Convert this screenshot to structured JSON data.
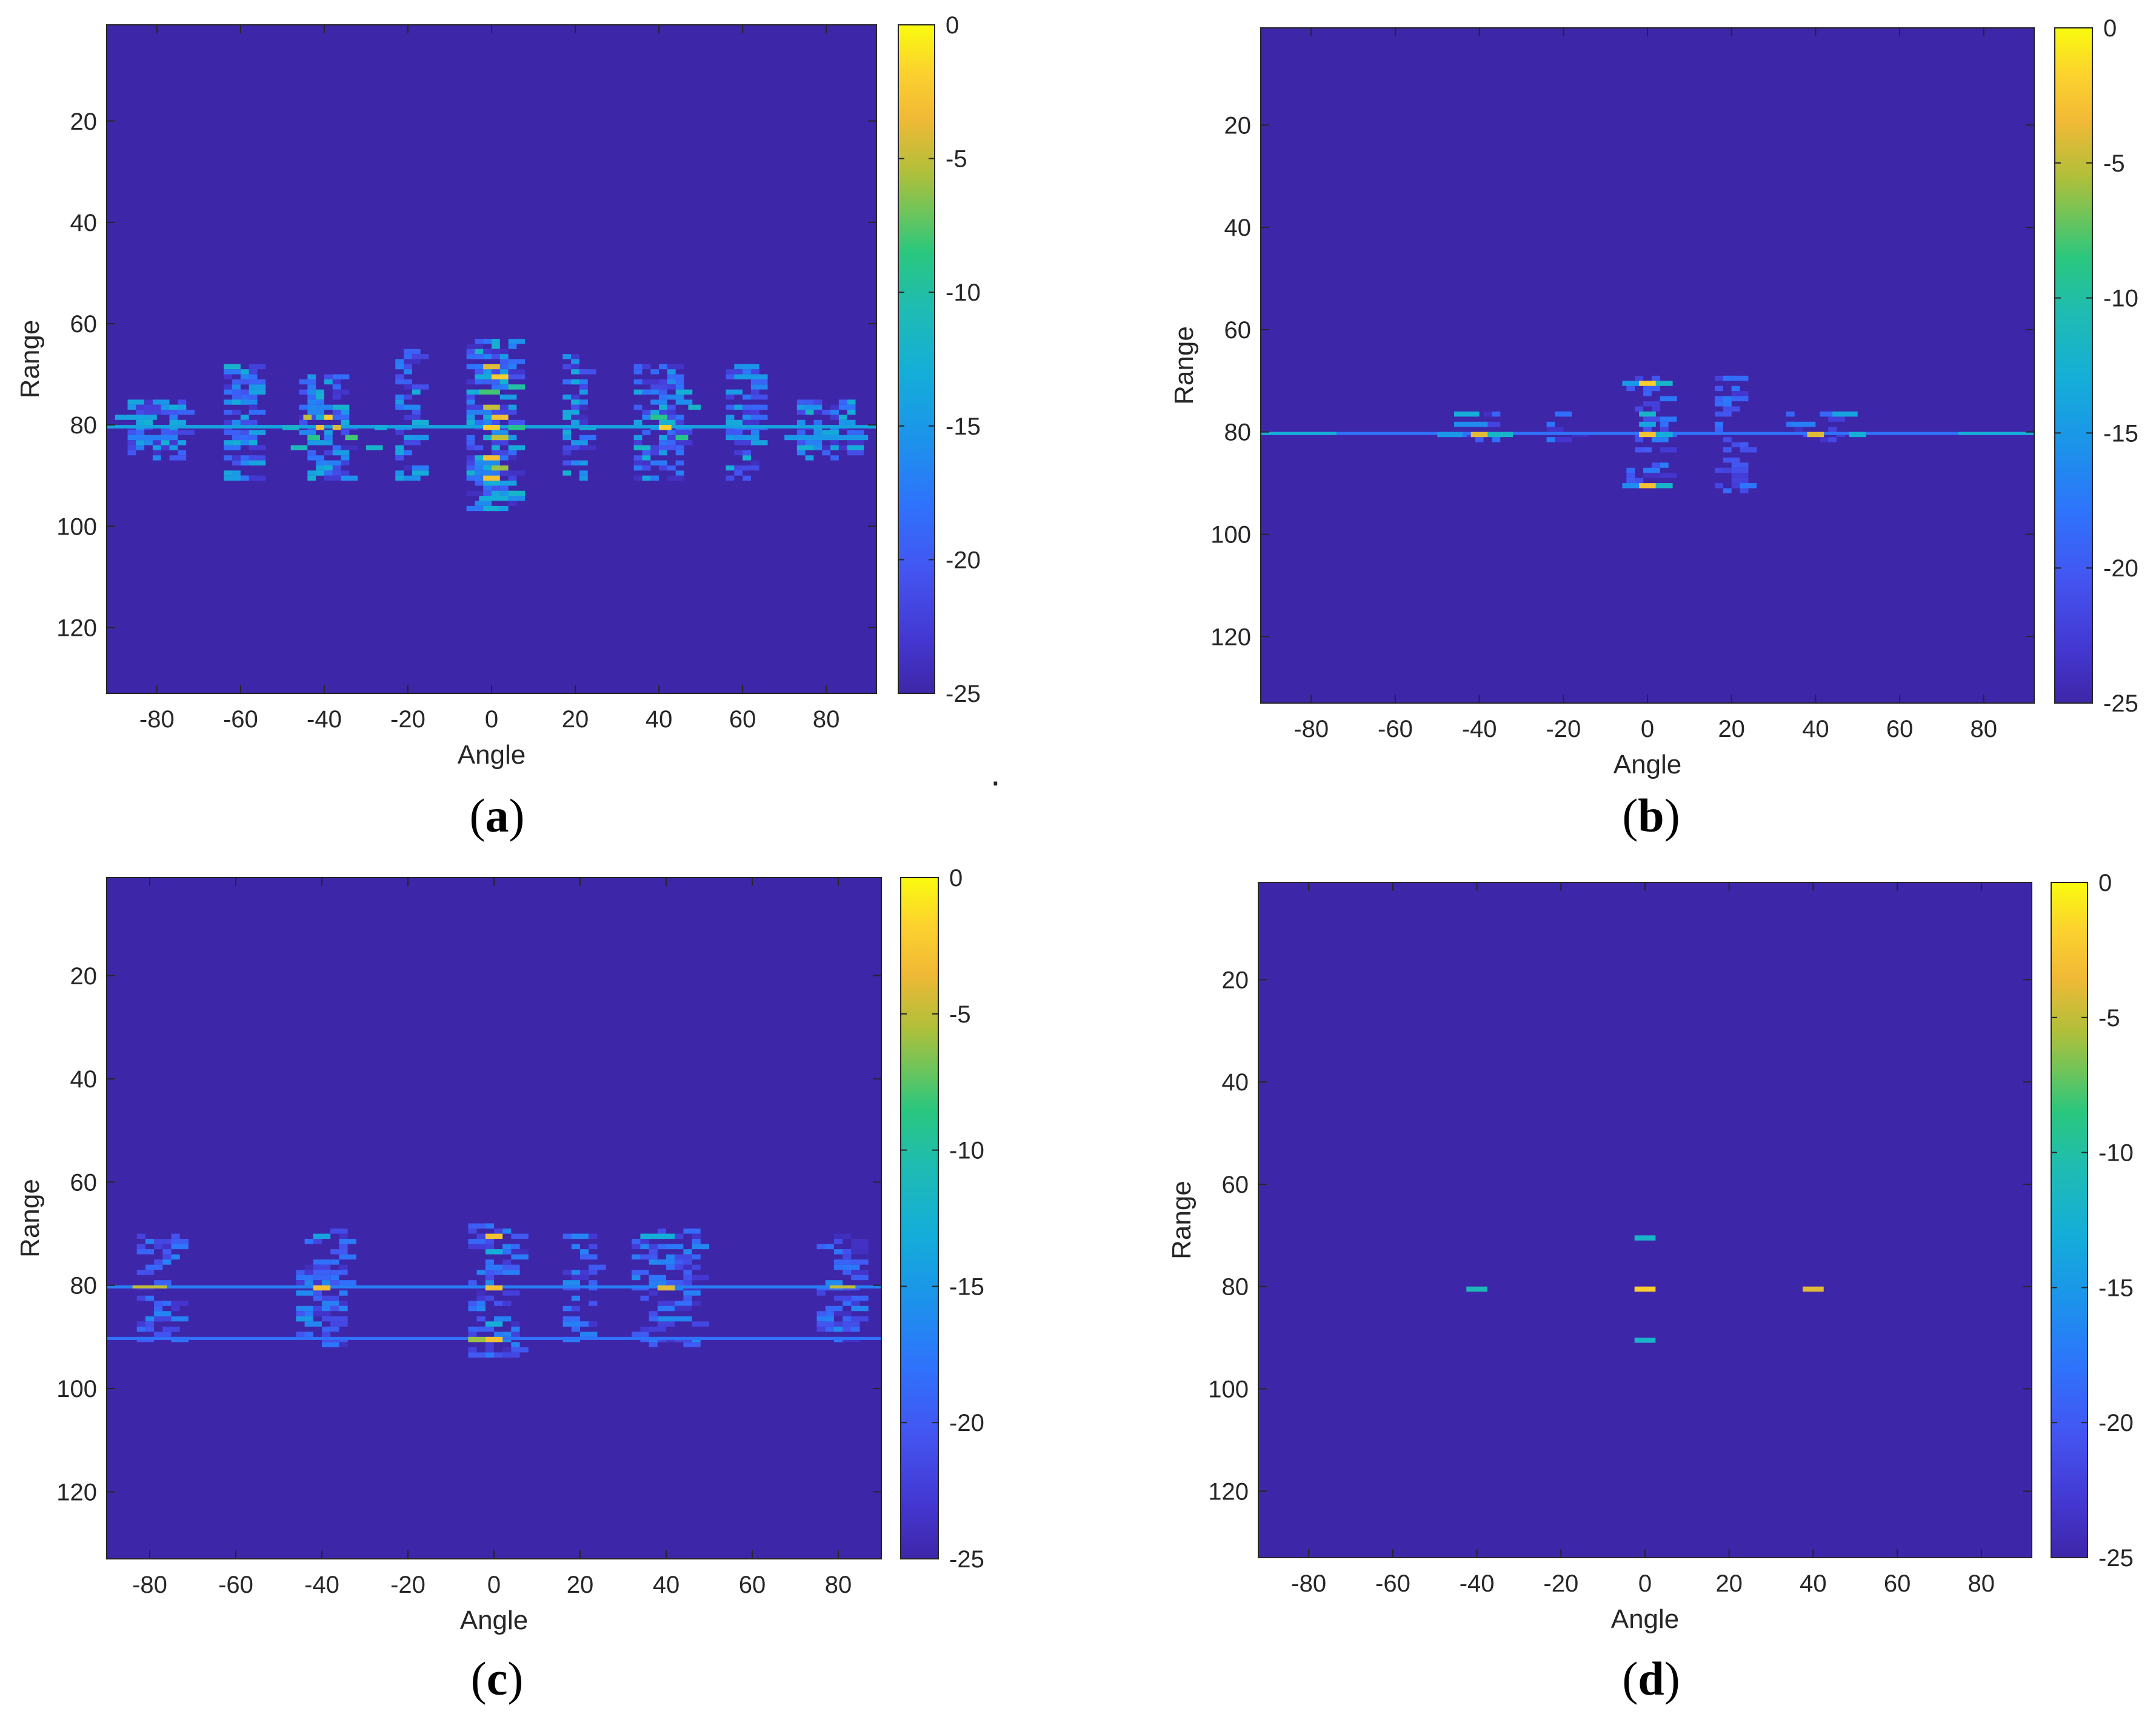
{
  "figure": {
    "stray_mark": "."
  },
  "colors": {
    "background": "#3f2aa6",
    "colormap": [
      "#3e26a8",
      "#4444e6",
      "#2b7efe",
      "#1ea4df",
      "#1fbab4",
      "#2bc68a",
      "#a6bf39",
      "#f6b93b",
      "#faea23",
      "#f9fb0e"
    ],
    "axis": "#262626"
  },
  "chart_data": [
    {
      "type": "heatmap",
      "id": "a",
      "caption_letter": "a",
      "xlabel": "Angle",
      "ylabel": "Range",
      "xlim": [
        -92,
        92
      ],
      "ylim": [
        1,
        133
      ],
      "xticks": [
        -80,
        -60,
        -40,
        -20,
        0,
        20,
        40,
        60,
        80
      ],
      "xtick_labels": [
        "-80",
        "-60",
        "-40",
        "-20",
        "0",
        "20",
        "40",
        "60",
        "80"
      ],
      "yticks": [
        20,
        40,
        60,
        80,
        100,
        120
      ],
      "ytick_labels": [
        "20",
        "40",
        "60",
        "80",
        "100",
        "120"
      ],
      "colorbar": {
        "range": [
          -25,
          0
        ],
        "ticks": [
          0,
          -5,
          -10,
          -15,
          -20,
          -25
        ],
        "tick_labels": [
          "0",
          "-5",
          "-10",
          "-15",
          "-20",
          "-25"
        ]
      },
      "background_value_db": -25,
      "cells": [
        {
          "a": -92,
          "r": 80,
          "db": -14,
          "w": 184,
          "h": 0.7
        },
        {
          "a": -45,
          "r": 78,
          "db": -5,
          "w": 2,
          "h": 1
        },
        {
          "a": -40,
          "r": 78,
          "db": -2,
          "w": 2,
          "h": 1
        },
        {
          "a": -42,
          "r": 80,
          "db": -3,
          "w": 2,
          "h": 1
        },
        {
          "a": -38,
          "r": 80,
          "db": -4,
          "w": 2,
          "h": 1
        },
        {
          "a": -44,
          "r": 82,
          "db": -9,
          "w": 3,
          "h": 1
        },
        {
          "a": -35,
          "r": 82,
          "db": -8,
          "w": 3,
          "h": 1
        },
        {
          "a": -48,
          "r": 84,
          "db": -11,
          "w": 4,
          "h": 1
        },
        {
          "a": -30,
          "r": 84,
          "db": -12,
          "w": 4,
          "h": 1
        },
        {
          "a": -50,
          "r": 80,
          "db": -12,
          "w": 4,
          "h": 1
        },
        {
          "a": -28,
          "r": 80,
          "db": -13,
          "w": 3,
          "h": 1
        },
        {
          "a": -2,
          "r": 68,
          "db": -4,
          "w": 4,
          "h": 1
        },
        {
          "a": 0,
          "r": 70,
          "db": -2,
          "w": 4,
          "h": 1
        },
        {
          "a": -3,
          "r": 73,
          "db": -8,
          "w": 5,
          "h": 1
        },
        {
          "a": -2,
          "r": 76,
          "db": -5,
          "w": 4,
          "h": 1
        },
        {
          "a": 0,
          "r": 78,
          "db": -3,
          "w": 4,
          "h": 1
        },
        {
          "a": -2,
          "r": 80,
          "db": -2,
          "w": 4,
          "h": 1
        },
        {
          "a": 0,
          "r": 82,
          "db": -5,
          "w": 4,
          "h": 1
        },
        {
          "a": -2,
          "r": 86,
          "db": -3,
          "w": 4,
          "h": 1
        },
        {
          "a": 0,
          "r": 88,
          "db": -6,
          "w": 4,
          "h": 1
        },
        {
          "a": -2,
          "r": 90,
          "db": -3,
          "w": 4,
          "h": 1
        },
        {
          "a": -3,
          "r": 94,
          "db": -13,
          "w": 6,
          "h": 1
        },
        {
          "a": 4,
          "r": 72,
          "db": -10,
          "w": 4,
          "h": 1
        },
        {
          "a": 4,
          "r": 80,
          "db": -9,
          "w": 4,
          "h": 1
        },
        {
          "a": 38,
          "r": 78,
          "db": -9,
          "w": 4,
          "h": 1
        },
        {
          "a": 40,
          "r": 80,
          "db": -2,
          "w": 3,
          "h": 1
        },
        {
          "a": 44,
          "r": 82,
          "db": -9,
          "w": 3,
          "h": 1
        },
        {
          "a": 34,
          "r": 84,
          "db": -12,
          "w": 4,
          "h": 1
        },
        {
          "a": 47,
          "r": 76,
          "db": -12,
          "w": 3,
          "h": 1
        },
        {
          "a": -90,
          "r": 78,
          "db": -14,
          "w": 10,
          "h": 1
        },
        {
          "a": 70,
          "r": 82,
          "db": -15,
          "w": 20,
          "h": 1
        },
        {
          "a": -85,
          "r": 82,
          "db": -17,
          "w": 10,
          "h": 1
        }
      ],
      "clusters": [
        {
          "center": -40,
          "span": 12,
          "rmin": 70,
          "rmax": 90
        },
        {
          "center": 0,
          "span": 12,
          "rmin": 63,
          "rmax": 96
        },
        {
          "center": 40,
          "span": 12,
          "rmin": 68,
          "rmax": 90
        },
        {
          "center": -80,
          "span": 14,
          "rmin": 75,
          "rmax": 86
        },
        {
          "center": 80,
          "span": 14,
          "rmin": 75,
          "rmax": 86
        },
        {
          "center": -20,
          "span": 6,
          "rmin": 65,
          "rmax": 90
        },
        {
          "center": 20,
          "span": 6,
          "rmin": 66,
          "rmax": 90
        },
        {
          "center": -60,
          "span": 8,
          "rmin": 68,
          "rmax": 90
        },
        {
          "center": 60,
          "span": 8,
          "rmin": 68,
          "rmax": 90
        }
      ],
      "cluster_density": 0.55,
      "cluster_db": [
        -24,
        -12
      ]
    },
    {
      "type": "heatmap",
      "id": "b",
      "caption_letter": "b",
      "xlabel": "Angle",
      "ylabel": "Range",
      "xlim": [
        -92,
        92
      ],
      "ylim": [
        1,
        133
      ],
      "xticks": [
        -80,
        -60,
        -40,
        -20,
        0,
        20,
        40,
        60,
        80
      ],
      "xtick_labels": [
        "-80",
        "-60",
        "-40",
        "-20",
        "0",
        "20",
        "40",
        "60",
        "80"
      ],
      "yticks": [
        20,
        40,
        60,
        80,
        100,
        120
      ],
      "ytick_labels": [
        "20",
        "40",
        "60",
        "80",
        "100",
        "120"
      ],
      "colorbar": {
        "range": [
          -25,
          0
        ],
        "ticks": [
          0,
          -5,
          -10,
          -15,
          -20,
          -25
        ],
        "tick_labels": [
          "0",
          "-5",
          "-10",
          "-15",
          "-20",
          "-25"
        ]
      },
      "background_value_db": -25,
      "cells": [
        {
          "a": -92,
          "r": 80,
          "db": -18,
          "w": 184,
          "h": 0.6
        },
        {
          "a": -92,
          "r": 80,
          "db": -13,
          "w": 18,
          "h": 0.6
        },
        {
          "a": 74,
          "r": 80,
          "db": -13,
          "w": 18,
          "h": 0.6
        },
        {
          "a": -2,
          "r": 70,
          "db": -2,
          "w": 4,
          "h": 1
        },
        {
          "a": 2,
          "r": 70,
          "db": -12,
          "w": 4,
          "h": 1
        },
        {
          "a": -6,
          "r": 70,
          "db": -15,
          "w": 4,
          "h": 1
        },
        {
          "a": -2,
          "r": 76,
          "db": -12,
          "w": 4,
          "h": 1
        },
        {
          "a": -2,
          "r": 78,
          "db": -14,
          "w": 4,
          "h": 1
        },
        {
          "a": -2,
          "r": 80,
          "db": -3,
          "w": 4,
          "h": 1
        },
        {
          "a": 2,
          "r": 80,
          "db": -13,
          "w": 4,
          "h": 1
        },
        {
          "a": -2,
          "r": 90,
          "db": -3,
          "w": 4,
          "h": 1
        },
        {
          "a": 2,
          "r": 90,
          "db": -12,
          "w": 4,
          "h": 1
        },
        {
          "a": -6,
          "r": 90,
          "db": -16,
          "w": 4,
          "h": 1
        },
        {
          "a": -42,
          "r": 80,
          "db": -4,
          "w": 4,
          "h": 1
        },
        {
          "a": -46,
          "r": 76,
          "db": -13,
          "w": 6,
          "h": 1
        },
        {
          "a": -46,
          "r": 78,
          "db": -16,
          "w": 8,
          "h": 1
        },
        {
          "a": -50,
          "r": 80,
          "db": -15,
          "w": 6,
          "h": 1
        },
        {
          "a": -38,
          "r": 80,
          "db": -12,
          "w": 6,
          "h": 1
        },
        {
          "a": 38,
          "r": 80,
          "db": -4,
          "w": 4,
          "h": 1
        },
        {
          "a": 44,
          "r": 76,
          "db": -14,
          "w": 6,
          "h": 1
        },
        {
          "a": 48,
          "r": 80,
          "db": -13,
          "w": 4,
          "h": 1
        },
        {
          "a": 34,
          "r": 78,
          "db": -17,
          "w": 6,
          "h": 1
        }
      ],
      "clusters": [
        {
          "center": -40,
          "span": 14,
          "rmin": 76,
          "rmax": 81
        },
        {
          "center": 0,
          "span": 10,
          "rmin": 69,
          "rmax": 91
        },
        {
          "center": 40,
          "span": 14,
          "rmin": 76,
          "rmax": 81
        },
        {
          "center": -20,
          "span": 8,
          "rmin": 76,
          "rmax": 81
        },
        {
          "center": 20,
          "span": 8,
          "rmin": 69,
          "rmax": 91
        }
      ],
      "cluster_density": 0.35,
      "cluster_db": [
        -24,
        -17
      ]
    },
    {
      "type": "heatmap",
      "id": "c",
      "caption_letter": "c",
      "xlabel": "Angle",
      "ylabel": "Range",
      "xlim": [
        -90,
        90
      ],
      "ylim": [
        1,
        133
      ],
      "xticks": [
        -80,
        -60,
        -40,
        -20,
        0,
        20,
        40,
        60,
        80
      ],
      "xtick_labels": [
        "-80",
        "-60",
        "-40",
        "-20",
        "0",
        "20",
        "40",
        "60",
        "80"
      ],
      "yticks": [
        20,
        40,
        60,
        80,
        100,
        120
      ],
      "ytick_labels": [
        "20",
        "40",
        "60",
        "80",
        "100",
        "120"
      ],
      "colorbar": {
        "range": [
          -25,
          0
        ],
        "ticks": [
          0,
          -5,
          -10,
          -15,
          -20,
          -25
        ],
        "tick_labels": [
          "0",
          "-5",
          "-10",
          "-15",
          "-20",
          "-25"
        ]
      },
      "background_value_db": -25,
      "cells": [
        {
          "a": -90,
          "r": 80,
          "db": -17,
          "w": 180,
          "h": 0.6
        },
        {
          "a": -84,
          "r": 80,
          "db": -5,
          "w": 8,
          "h": 0.6
        },
        {
          "a": 78,
          "r": 80,
          "db": -5,
          "w": 6,
          "h": 0.6
        },
        {
          "a": -90,
          "r": 90,
          "db": -18,
          "w": 180,
          "h": 0.6
        },
        {
          "a": -2,
          "r": 70,
          "db": -3,
          "w": 4,
          "h": 1
        },
        {
          "a": -2,
          "r": 73,
          "db": -13,
          "w": 4,
          "h": 1
        },
        {
          "a": -2,
          "r": 80,
          "db": -3,
          "w": 4,
          "h": 1
        },
        {
          "a": -2,
          "r": 87,
          "db": -13,
          "w": 4,
          "h": 1
        },
        {
          "a": -2,
          "r": 90,
          "db": -3,
          "w": 4,
          "h": 1
        },
        {
          "a": -6,
          "r": 90,
          "db": -6,
          "w": 4,
          "h": 1
        },
        {
          "a": -42,
          "r": 80,
          "db": -3,
          "w": 4,
          "h": 1
        },
        {
          "a": -42,
          "r": 70,
          "db": -14,
          "w": 4,
          "h": 1
        },
        {
          "a": 38,
          "r": 80,
          "db": -4,
          "w": 4,
          "h": 1
        },
        {
          "a": 34,
          "r": 70,
          "db": -13,
          "w": 8,
          "h": 1
        },
        {
          "a": 38,
          "r": 86,
          "db": -16,
          "w": 4,
          "h": 1
        },
        {
          "a": -46,
          "r": 86,
          "db": -15,
          "w": 4,
          "h": 1
        }
      ],
      "clusters": [
        {
          "center": -40,
          "span": 12,
          "rmin": 69,
          "rmax": 91
        },
        {
          "center": 0,
          "span": 12,
          "rmin": 68,
          "rmax": 93
        },
        {
          "center": 40,
          "span": 16,
          "rmin": 69,
          "rmax": 91
        },
        {
          "center": -78,
          "span": 10,
          "rmin": 70,
          "rmax": 90
        },
        {
          "center": 80,
          "span": 10,
          "rmin": 70,
          "rmax": 90
        },
        {
          "center": 20,
          "span": 8,
          "rmin": 70,
          "rmax": 90
        }
      ],
      "cluster_density": 0.4,
      "cluster_db": [
        -24,
        -16
      ]
    },
    {
      "type": "heatmap",
      "id": "d",
      "caption_letter": "d",
      "xlabel": "Angle",
      "ylabel": "Range",
      "xlim": [
        -92,
        92
      ],
      "ylim": [
        1,
        133
      ],
      "xticks": [
        -80,
        -60,
        -40,
        -20,
        0,
        20,
        40,
        60,
        80
      ],
      "xtick_labels": [
        "-80",
        "-60",
        "-40",
        "-20",
        "0",
        "20",
        "40",
        "60",
        "80"
      ],
      "yticks": [
        20,
        40,
        60,
        80,
        100,
        120
      ],
      "ytick_labels": [
        "20",
        "40",
        "60",
        "80",
        "100",
        "120"
      ],
      "colorbar": {
        "range": [
          -25,
          0
        ],
        "ticks": [
          0,
          -5,
          -10,
          -15,
          -20,
          -25
        ],
        "tick_labels": [
          "0",
          "-5",
          "-10",
          "-15",
          "-20",
          "-25"
        ]
      },
      "background_value_db": -25,
      "cells": [
        {
          "a": -42.5,
          "r": 80,
          "db": -11,
          "w": 5,
          "h": 1
        },
        {
          "a": -2.5,
          "r": 70,
          "db": -12,
          "w": 5,
          "h": 1
        },
        {
          "a": -2.5,
          "r": 80,
          "db": -2,
          "w": 5,
          "h": 1
        },
        {
          "a": -2.5,
          "r": 90,
          "db": -12,
          "w": 5,
          "h": 1
        },
        {
          "a": 37.5,
          "r": 80,
          "db": -4,
          "w": 5,
          "h": 1
        }
      ],
      "clusters": [],
      "cluster_density": 0,
      "cluster_db": [
        -24,
        -20
      ]
    }
  ]
}
